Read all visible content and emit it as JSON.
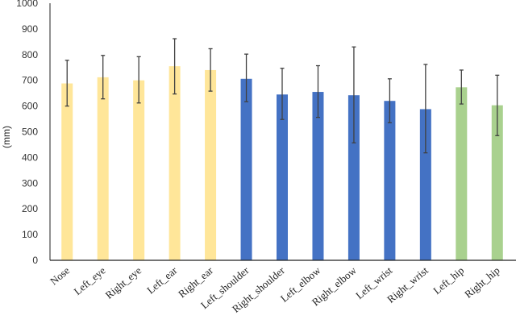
{
  "chart_data": {
    "type": "bar",
    "title": "",
    "xlabel": "",
    "ylabel": "(mm)",
    "ylim": [
      0,
      1000
    ],
    "yticks": [
      0,
      100,
      200,
      300,
      400,
      500,
      600,
      700,
      800,
      900,
      1000
    ],
    "grid": false,
    "categories": [
      "Nose",
      "Left_eye",
      "Right_eye",
      "Left_ear",
      "Right_ear",
      "Left_shoulder",
      "Right_shoulder",
      "Left_elbow",
      "Right_elbow",
      "Left_wrist",
      "Right_wrist",
      "Left_hip",
      "Right_hip"
    ],
    "values": [
      688,
      712,
      700,
      755,
      740,
      706,
      645,
      655,
      642,
      620,
      588,
      673,
      603
    ],
    "error_low": [
      600,
      628,
      612,
      647,
      658,
      617,
      548,
      556,
      457,
      535,
      418,
      608,
      485
    ],
    "error_high": [
      778,
      797,
      792,
      862,
      823,
      802,
      747,
      757,
      830,
      706,
      762,
      740,
      720
    ],
    "bar_colors": [
      "#FFE699",
      "#FFE699",
      "#FFE699",
      "#FFE699",
      "#FFE699",
      "#4472C4",
      "#4472C4",
      "#4472C4",
      "#4472C4",
      "#4472C4",
      "#4472C4",
      "#A9D18E",
      "#A9D18E"
    ],
    "error_bar_color": "#404040"
  }
}
